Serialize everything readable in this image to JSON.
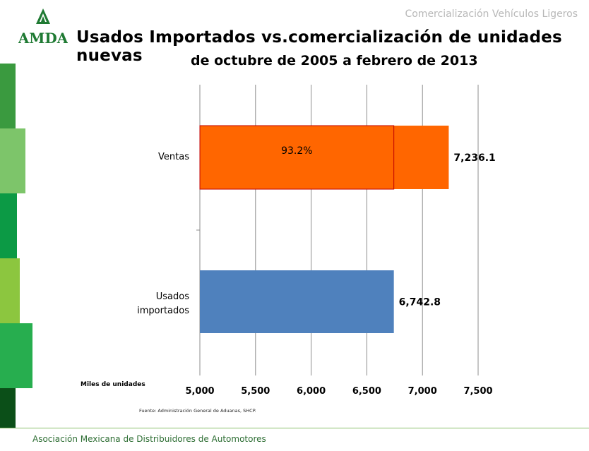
{
  "header": {
    "section": "Comercialización Vehículos Ligeros",
    "logo_text": "AMDA",
    "title": "Usados Importados vs.comercialización de unidades nuevas",
    "subtitle": "de octubre de 2005 a febrero de 2013"
  },
  "colors": {
    "ventas": "#ff6600",
    "ventas_border": "#c00000",
    "usados": "#4f81bd",
    "side_bands": [
      "#3a9a3f",
      "#7dc56a",
      "#0c9a45",
      "#8cc63f",
      "#27ae4f",
      "#0b4f18",
      "#3daa48"
    ]
  },
  "chart_data": {
    "type": "bar",
    "orientation": "horizontal",
    "categories": [
      "Ventas",
      "Usados importados"
    ],
    "values": [
      7236.1,
      6742.8
    ],
    "value_labels": [
      "7,236.1",
      "6,742.8"
    ],
    "overlay": {
      "category": "Ventas",
      "value": 6742.8,
      "label": "93.2%"
    },
    "xlim": [
      5000,
      7500
    ],
    "xticks": [
      5000,
      5500,
      6000,
      6500,
      7000,
      7500
    ],
    "xtick_labels": [
      "5,000",
      "5,500",
      "6,000",
      "6,500",
      "7,000",
      "7,500"
    ],
    "xlabel": "Miles de unidades",
    "grid": true
  },
  "source": "Fuente: Administración General de Aduanas, SHCP.",
  "footer": "Asociación Mexicana de Distribuidores de Automotores"
}
